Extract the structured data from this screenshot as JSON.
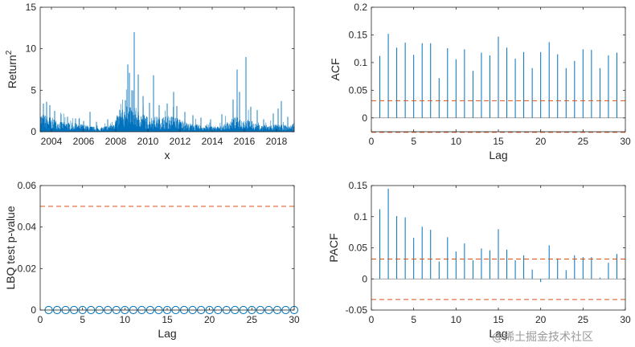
{
  "watermark": "@稀土掘金技术社区",
  "chart_data": [
    {
      "panel": "returns-squared",
      "type": "area",
      "ylabel_main": "Return",
      "ylabel_sup": "2",
      "xlabel": "x",
      "xlim": [
        2003.3,
        2019.1
      ],
      "ylim": [
        0,
        15
      ],
      "xticks": [
        2004,
        2006,
        2008,
        2010,
        2012,
        2014,
        2016,
        2018
      ],
      "yticks": [
        0,
        5,
        10,
        15
      ],
      "color": "#0072BD",
      "spikes": [
        {
          "x": 2003.5,
          "y": 3.4
        },
        {
          "x": 2003.7,
          "y": 3.6
        },
        {
          "x": 2003.9,
          "y": 3.2
        },
        {
          "x": 2004.2,
          "y": 2.5
        },
        {
          "x": 2004.6,
          "y": 2.1
        },
        {
          "x": 2005.0,
          "y": 1.8
        },
        {
          "x": 2005.5,
          "y": 1.6
        },
        {
          "x": 2006.0,
          "y": 1.3
        },
        {
          "x": 2006.4,
          "y": 2.4
        },
        {
          "x": 2006.8,
          "y": 1.2
        },
        {
          "x": 2007.5,
          "y": 1.5
        },
        {
          "x": 2008.3,
          "y": 2.6
        },
        {
          "x": 2008.6,
          "y": 3.8
        },
        {
          "x": 2008.75,
          "y": 8.1
        },
        {
          "x": 2008.85,
          "y": 7.1
        },
        {
          "x": 2009.0,
          "y": 5.0
        },
        {
          "x": 2009.15,
          "y": 12.0
        },
        {
          "x": 2009.4,
          "y": 6.9
        },
        {
          "x": 2009.7,
          "y": 4.3
        },
        {
          "x": 2010.1,
          "y": 3.5
        },
        {
          "x": 2010.35,
          "y": 6.8
        },
        {
          "x": 2010.7,
          "y": 3.2
        },
        {
          "x": 2011.2,
          "y": 3.4
        },
        {
          "x": 2011.6,
          "y": 4.8
        },
        {
          "x": 2011.8,
          "y": 3.1
        },
        {
          "x": 2012.3,
          "y": 2.4
        },
        {
          "x": 2012.8,
          "y": 2.0
        },
        {
          "x": 2013.3,
          "y": 1.7
        },
        {
          "x": 2013.9,
          "y": 1.5
        },
        {
          "x": 2014.6,
          "y": 2.1
        },
        {
          "x": 2015.3,
          "y": 3.9
        },
        {
          "x": 2015.55,
          "y": 7.5
        },
        {
          "x": 2015.7,
          "y": 4.8
        },
        {
          "x": 2016.1,
          "y": 9.0
        },
        {
          "x": 2016.4,
          "y": 3.0
        },
        {
          "x": 2016.8,
          "y": 2.6
        },
        {
          "x": 2017.2,
          "y": 1.5
        },
        {
          "x": 2017.8,
          "y": 2.2
        },
        {
          "x": 2018.1,
          "y": 2.8
        },
        {
          "x": 2018.3,
          "y": 3.7
        },
        {
          "x": 2018.7,
          "y": 1.8
        },
        {
          "x": 2019.0,
          "y": 0.9
        }
      ]
    },
    {
      "panel": "acf",
      "type": "bar",
      "ylabel": "ACF",
      "xlabel": "Lag",
      "xlim": [
        0,
        30
      ],
      "ylim": [
        -0.025,
        0.2
      ],
      "xticks": [
        0,
        5,
        10,
        15,
        20,
        25,
        30
      ],
      "yticks": [
        0,
        0.05,
        0.1,
        0.15,
        0.2
      ],
      "ytick_labels": [
        "0",
        "0.05",
        "0.1",
        "0.15",
        "0.2"
      ],
      "lags": [
        1,
        2,
        3,
        4,
        5,
        6,
        7,
        8,
        9,
        10,
        11,
        12,
        13,
        14,
        15,
        16,
        17,
        18,
        19,
        20,
        21,
        22,
        23,
        24,
        25,
        26,
        27,
        28,
        29
      ],
      "values": [
        0.112,
        0.152,
        0.127,
        0.136,
        0.114,
        0.135,
        0.135,
        0.072,
        0.126,
        0.106,
        0.124,
        0.085,
        0.118,
        0.113,
        0.147,
        0.127,
        0.107,
        0.119,
        0.09,
        0.119,
        0.137,
        0.115,
        0.09,
        0.103,
        0.124,
        0.123,
        0.09,
        0.113,
        0.118
      ],
      "confidence_bound": 0.031,
      "lower_bound": -0.026
    },
    {
      "panel": "lbq",
      "type": "scatter",
      "ylabel": "LBQ test p-value",
      "xlabel": "Lag",
      "xlim": [
        0,
        30
      ],
      "ylim": [
        0,
        0.06
      ],
      "xticks": [
        0,
        5,
        10,
        15,
        20,
        25,
        30
      ],
      "yticks": [
        0,
        0.02,
        0.04,
        0.06
      ],
      "ytick_labels": [
        "0",
        "0.02",
        "0.04",
        "0.06"
      ],
      "lags": [
        1,
        2,
        3,
        4,
        5,
        6,
        7,
        8,
        9,
        10,
        11,
        12,
        13,
        14,
        15,
        16,
        17,
        18,
        19,
        20,
        21,
        22,
        23,
        24,
        25,
        26,
        27,
        28,
        29,
        30
      ],
      "values": [
        0,
        0,
        0,
        0,
        0,
        0,
        0,
        0,
        0,
        0,
        0,
        0,
        0,
        0,
        0,
        0,
        0,
        0,
        0,
        0,
        0,
        0,
        0,
        0,
        0,
        0,
        0,
        0,
        0,
        0
      ],
      "threshold": 0.05
    },
    {
      "panel": "pacf",
      "type": "bar",
      "ylabel": "PACF",
      "xlabel": "Lag",
      "xlim": [
        0,
        30
      ],
      "ylim": [
        -0.05,
        0.15
      ],
      "xticks": [
        0,
        5,
        10,
        15,
        20,
        25,
        30
      ],
      "yticks": [
        -0.05,
        0,
        0.05,
        0.1,
        0.15
      ],
      "ytick_labels": [
        "-0.05",
        "0",
        "0.05",
        "0.1",
        "0.15"
      ],
      "lags": [
        1,
        2,
        3,
        4,
        5,
        6,
        7,
        8,
        9,
        10,
        11,
        12,
        13,
        14,
        15,
        16,
        17,
        18,
        19,
        20,
        21,
        22,
        23,
        24,
        25,
        26,
        27,
        28,
        29
      ],
      "values": [
        0.112,
        0.145,
        0.101,
        0.099,
        0.066,
        0.084,
        0.079,
        0.028,
        0.067,
        0.044,
        0.057,
        0.03,
        0.049,
        0.046,
        0.08,
        0.047,
        0.03,
        0.038,
        0.015,
        -0.005,
        0.054,
        0.033,
        0.014,
        0.038,
        0.035,
        0.035,
        0.002,
        0.026,
        0.04
      ],
      "confidence_bound": 0.032,
      "lower_bound": -0.033
    }
  ]
}
